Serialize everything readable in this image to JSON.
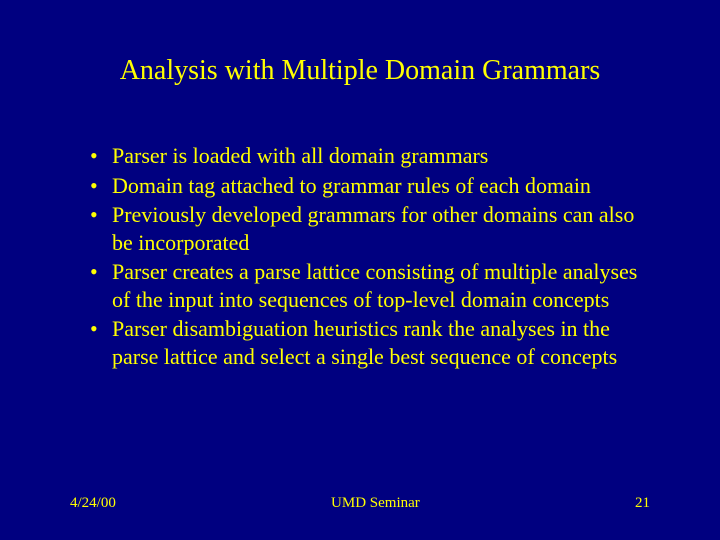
{
  "colors": {
    "background": "#000080",
    "text": "#ffff00"
  },
  "typography": {
    "family": "Times New Roman",
    "title_fontsize": 28,
    "bullet_fontsize": 22,
    "footer_fontsize": 15
  },
  "slide": {
    "title": "Analysis with Multiple Domain Grammars",
    "bullets": [
      "Parser is loaded with all domain grammars",
      "Domain tag attached to grammar rules of each domain",
      "Previously developed grammars for other domains can also be incorporated",
      "Parser creates a parse lattice consisting of multiple analyses of the input into sequences of top-level domain concepts",
      "Parser disambiguation heuristics rank the analyses in the parse lattice and select a single best sequence of concepts"
    ]
  },
  "footer": {
    "date": "4/24/00",
    "venue": "UMD Seminar",
    "page": "21"
  }
}
